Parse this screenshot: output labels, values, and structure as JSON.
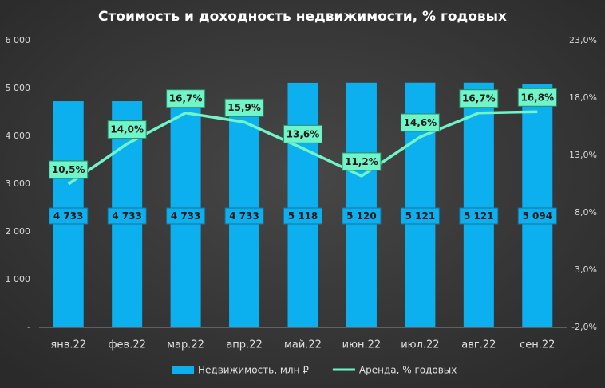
{
  "chart_data": {
    "type": "bar_line",
    "title": "Стоимость и доходность недвижимости, % годовых",
    "categories": [
      "янв.22",
      "фев.22",
      "мар.22",
      "апр.22",
      "май.22",
      "июн.22",
      "июл.22",
      "авг.22",
      "сен.22"
    ],
    "series": [
      {
        "name": "Недвижимость, млн ₽",
        "type": "bar",
        "color": "#0cb0ee",
        "values": [
          4733,
          4733,
          4733,
          4733,
          5118,
          5120,
          5121,
          5121,
          5094
        ],
        "value_labels": [
          "4 733",
          "4 733",
          "4 733",
          "4 733",
          "5 118",
          "5 120",
          "5 121",
          "5 121",
          "5 094"
        ]
      },
      {
        "name": "Аренда, % годовых",
        "type": "line",
        "axis": "y2",
        "color": "#6ff5c8",
        "values": [
          10.5,
          14.0,
          16.7,
          15.9,
          13.6,
          11.2,
          14.6,
          16.7,
          16.8
        ],
        "value_labels": [
          "10,5%",
          "14,0%",
          "16,7%",
          "15,9%",
          "13,6%",
          "11,2%",
          "14,6%",
          "16,7%",
          "16,8%"
        ]
      }
    ],
    "ylim": [
      0,
      6000
    ],
    "yticks": [
      {
        "value": 0,
        "label": "-"
      },
      {
        "value": 1000,
        "label": "1 000"
      },
      {
        "value": 2000,
        "label": "2 000"
      },
      {
        "value": 3000,
        "label": "3 000"
      },
      {
        "value": 4000,
        "label": "4 000"
      },
      {
        "value": 5000,
        "label": "5 000"
      },
      {
        "value": 6000,
        "label": "6 000"
      }
    ],
    "y2lim": [
      -2,
      23
    ],
    "y2ticks": [
      {
        "value": -2,
        "label": "-2,0%"
      },
      {
        "value": 3,
        "label": "3,0%"
      },
      {
        "value": 8,
        "label": "8,0%"
      },
      {
        "value": 13,
        "label": "13,0%"
      },
      {
        "value": 18,
        "label": "18,0%"
      },
      {
        "value": 23,
        "label": "23,0%"
      }
    ],
    "grid": false
  }
}
